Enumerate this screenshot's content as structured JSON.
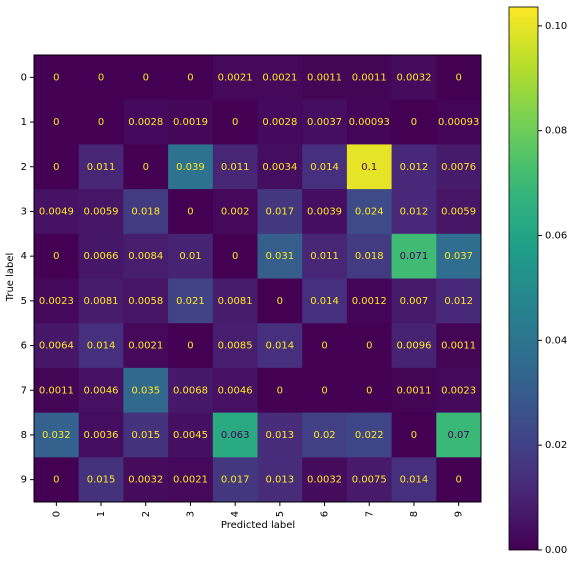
{
  "chart_data": {
    "type": "heatmap",
    "x_label": "Predicted label",
    "y_label": "True label",
    "x_categories": [
      "0",
      "1",
      "2",
      "3",
      "4",
      "5",
      "6",
      "7",
      "8",
      "9"
    ],
    "y_categories": [
      "0",
      "1",
      "2",
      "3",
      "4",
      "5",
      "6",
      "7",
      "8",
      "9"
    ],
    "z": [
      [
        0,
        0,
        0,
        0,
        0.0021,
        0.0021,
        0.0011,
        0.0011,
        0.0032,
        0
      ],
      [
        0,
        0,
        0.0028,
        0.0019,
        0,
        0.0028,
        0.0037,
        0.00093,
        0,
        0.00093
      ],
      [
        0,
        0.011,
        0,
        0.039,
        0.011,
        0.0034,
        0.014,
        0.1,
        0.012,
        0.0076
      ],
      [
        0.0049,
        0.0059,
        0.018,
        0,
        0.002,
        0.017,
        0.0039,
        0.024,
        0.012,
        0.0059
      ],
      [
        0,
        0.0066,
        0.0084,
        0.01,
        0,
        0.031,
        0.011,
        0.018,
        0.071,
        0.037
      ],
      [
        0.0023,
        0.0081,
        0.0058,
        0.021,
        0.0081,
        0,
        0.014,
        0.0012,
        0.007,
        0.012
      ],
      [
        0.0064,
        0.014,
        0.0021,
        0,
        0.0085,
        0.014,
        0,
        0,
        0.0096,
        0.0011
      ],
      [
        0.0011,
        0.0046,
        0.035,
        0.0068,
        0.0046,
        0,
        0,
        0,
        0.0011,
        0.0023
      ],
      [
        0.032,
        0.0036,
        0.015,
        0.0045,
        0.063,
        0.013,
        0.02,
        0.022,
        0,
        0.07
      ],
      [
        0,
        0.015,
        0.0032,
        0.0021,
        0.017,
        0.013,
        0.0032,
        0.0075,
        0.014,
        0
      ]
    ],
    "colormap": "viridis",
    "zlim": [
      0,
      0.1036
    ],
    "zticks": [
      {
        "value": 0,
        "label": "0.00"
      },
      {
        "value": 0.02,
        "label": "0.02"
      },
      {
        "value": 0.04,
        "label": "0.04"
      },
      {
        "value": 0.06,
        "label": "0.06"
      },
      {
        "value": 0.08,
        "label": "0.08"
      },
      {
        "value": 0.1,
        "label": "0.10"
      }
    ]
  }
}
